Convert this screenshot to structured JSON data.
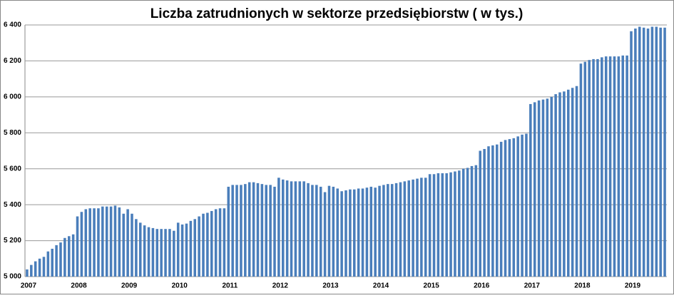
{
  "chart_data": {
    "type": "bar",
    "title": "Liczba zatrudnionych w sektorze przedsiębiorstw ( w tys.)",
    "categories": [
      "2007",
      null,
      null,
      null,
      null,
      null,
      null,
      null,
      null,
      null,
      null,
      null,
      "2008",
      null,
      null,
      null,
      null,
      null,
      null,
      null,
      null,
      null,
      null,
      null,
      "2009",
      null,
      null,
      null,
      null,
      null,
      null,
      null,
      null,
      null,
      null,
      null,
      "2010",
      null,
      null,
      null,
      null,
      null,
      null,
      null,
      null,
      null,
      null,
      null,
      "2011",
      null,
      null,
      null,
      null,
      null,
      null,
      null,
      null,
      null,
      null,
      null,
      "2012",
      null,
      null,
      null,
      null,
      null,
      null,
      null,
      null,
      null,
      null,
      null,
      "2013",
      null,
      null,
      null,
      null,
      null,
      null,
      null,
      null,
      null,
      null,
      null,
      "2014",
      null,
      null,
      null,
      null,
      null,
      null,
      null,
      null,
      null,
      null,
      null,
      "2015",
      null,
      null,
      null,
      null,
      null,
      null,
      null,
      null,
      null,
      null,
      null,
      "2016",
      null,
      null,
      null,
      null,
      null,
      null,
      null,
      null,
      null,
      null,
      null,
      "2017",
      null,
      null,
      null,
      null,
      null,
      null,
      null,
      null,
      null,
      null,
      null,
      "2018",
      null,
      null,
      null,
      null,
      null,
      null,
      null,
      null,
      null,
      null,
      null,
      "2019",
      null,
      null,
      null,
      null,
      null,
      null,
      null,
      null
    ],
    "values": [
      5040,
      5065,
      5085,
      5100,
      5110,
      5140,
      5155,
      5175,
      5190,
      5215,
      5225,
      5235,
      5335,
      5360,
      5375,
      5380,
      5380,
      5380,
      5390,
      5390,
      5390,
      5395,
      5385,
      5350,
      5375,
      5350,
      5320,
      5300,
      5285,
      5275,
      5270,
      5265,
      5265,
      5265,
      5265,
      5255,
      5300,
      5290,
      5295,
      5310,
      5320,
      5335,
      5350,
      5355,
      5365,
      5375,
      5380,
      5380,
      5500,
      5510,
      5510,
      5510,
      5515,
      5525,
      5525,
      5520,
      5515,
      5510,
      5510,
      5500,
      5550,
      5540,
      5535,
      5530,
      5530,
      5530,
      5530,
      5520,
      5510,
      5510,
      5500,
      5470,
      5505,
      5500,
      5490,
      5475,
      5480,
      5485,
      5485,
      5490,
      5490,
      5495,
      5500,
      5495,
      5505,
      5510,
      5515,
      5515,
      5520,
      5525,
      5530,
      5535,
      5540,
      5545,
      5550,
      5550,
      5570,
      5570,
      5575,
      5575,
      5575,
      5580,
      5585,
      5590,
      5600,
      5605,
      5615,
      5620,
      5700,
      5710,
      5725,
      5730,
      5735,
      5750,
      5760,
      5765,
      5770,
      5780,
      5790,
      5795,
      5960,
      5970,
      5980,
      5985,
      5990,
      6000,
      6015,
      6025,
      6030,
      6040,
      6050,
      6060,
      6185,
      6195,
      6205,
      6210,
      6210,
      6220,
      6225,
      6225,
      6225,
      6225,
      6230,
      6230,
      6365,
      6380,
      6390,
      6385,
      6380,
      6390,
      6390,
      6385,
      6385
    ],
    "color": "#4a7ebb",
    "ylim": [
      5000,
      6400
    ],
    "yticks": [
      {
        "value": 5000,
        "label": "5 000"
      },
      {
        "value": 5200,
        "label": "5 200"
      },
      {
        "value": 5400,
        "label": "5 400"
      },
      {
        "value": 5600,
        "label": "5 600"
      },
      {
        "value": 5800,
        "label": "5 800"
      },
      {
        "value": 6000,
        "label": "6 000"
      },
      {
        "value": 6200,
        "label": "6 200"
      },
      {
        "value": 6400,
        "label": "6 400"
      }
    ],
    "grid": true
  }
}
